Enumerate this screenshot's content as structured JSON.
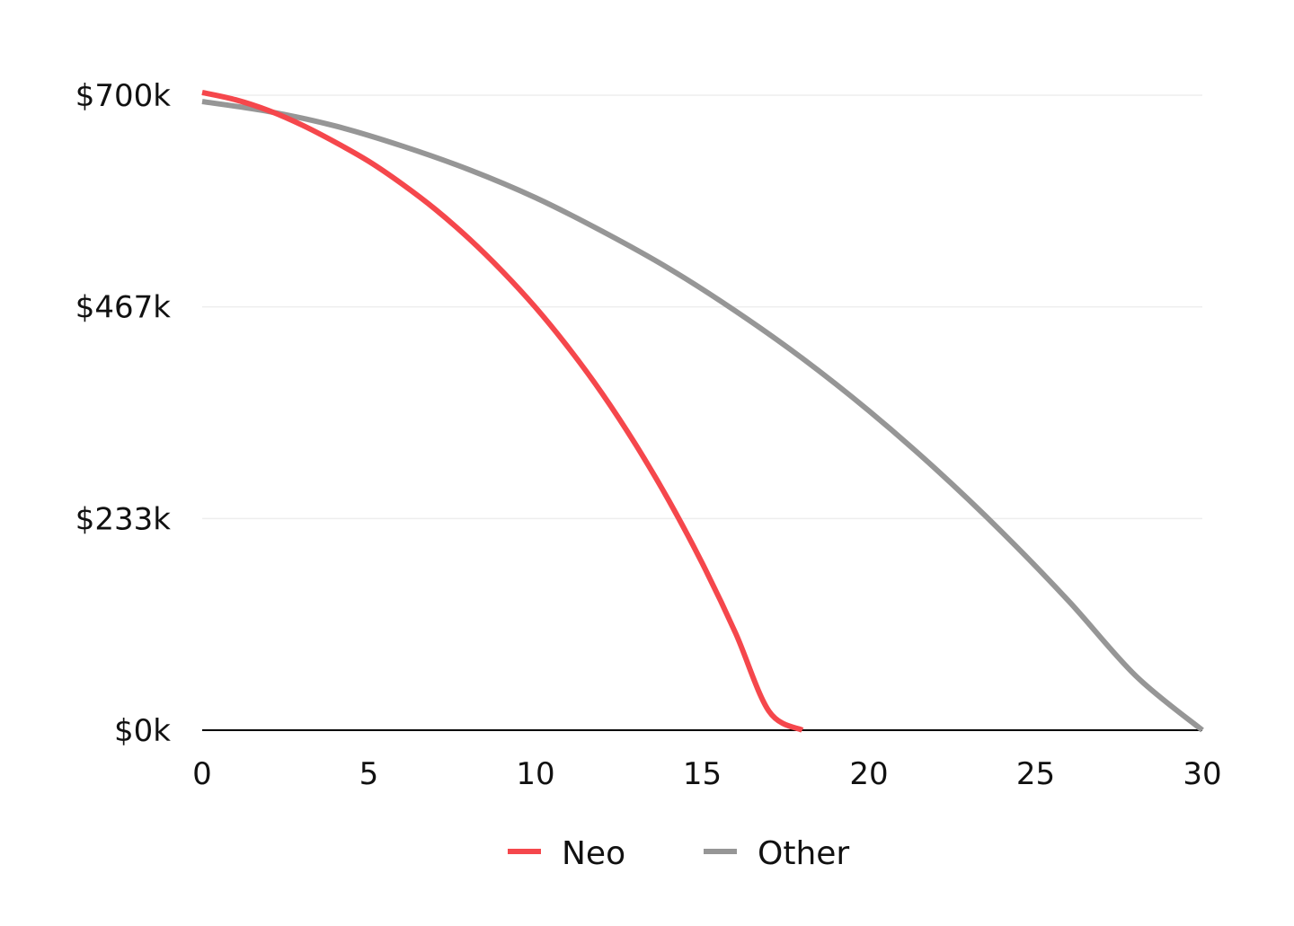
{
  "chart_data": {
    "type": "line",
    "title": "",
    "xlabel": "",
    "ylabel": "",
    "xlim": [
      0,
      30
    ],
    "ylim": [
      0,
      700
    ],
    "x_ticks": [
      {
        "value": 0,
        "label": "0"
      },
      {
        "value": 5,
        "label": "5"
      },
      {
        "value": 10,
        "label": "10"
      },
      {
        "value": 15,
        "label": "15"
      },
      {
        "value": 20,
        "label": "20"
      },
      {
        "value": 25,
        "label": "25"
      },
      {
        "value": 30,
        "label": "30"
      }
    ],
    "y_ticks": [
      {
        "value": 0,
        "label": "$0k"
      },
      {
        "value": 233.33,
        "label": "$233k"
      },
      {
        "value": 466.67,
        "label": "$467k"
      },
      {
        "value": 700,
        "label": "$700k"
      }
    ],
    "grid": "horizontal",
    "legend": "bottom-center",
    "series": [
      {
        "name": "Neo",
        "color": "#f5474c",
        "points": [
          [
            0,
            703
          ],
          [
            1,
            695
          ],
          [
            2,
            683
          ],
          [
            3,
            667
          ],
          [
            4,
            648
          ],
          [
            5,
            627
          ],
          [
            6,
            602
          ],
          [
            7,
            574
          ],
          [
            8,
            542
          ],
          [
            9,
            506
          ],
          [
            10,
            466
          ],
          [
            11,
            421
          ],
          [
            12,
            371
          ],
          [
            13,
            315
          ],
          [
            14,
            253
          ],
          [
            15,
            184
          ],
          [
            16,
            107
          ],
          [
            17,
            21
          ],
          [
            18,
            0
          ]
        ]
      },
      {
        "name": "Other",
        "color": "#969696",
        "points": [
          [
            0,
            693
          ],
          [
            2,
            682
          ],
          [
            4,
            666
          ],
          [
            6,
            644
          ],
          [
            8,
            618
          ],
          [
            10,
            587
          ],
          [
            12,
            550
          ],
          [
            14,
            509
          ],
          [
            16,
            462
          ],
          [
            18,
            410
          ],
          [
            20,
            352
          ],
          [
            22,
            288
          ],
          [
            24,
            218
          ],
          [
            26,
            142
          ],
          [
            28,
            60
          ],
          [
            30,
            0
          ]
        ]
      }
    ],
    "colors": {
      "axis": "#000000",
      "grid": "#eeeeee",
      "text": "#111111"
    }
  }
}
